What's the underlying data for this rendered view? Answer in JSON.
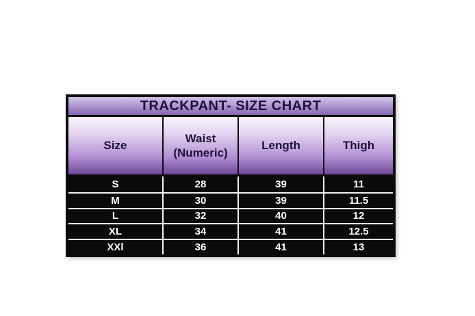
{
  "page": {
    "background": "#ffffff"
  },
  "table": {
    "title": "TRACKPANT- SIZE CHART",
    "columns": [
      "Size",
      "Waist\n(Numeric)",
      "Length",
      "Thigh"
    ],
    "rows": [
      [
        "S",
        "28",
        "39",
        "11"
      ],
      [
        "M",
        "30",
        "39",
        "11.5"
      ],
      [
        "L",
        "32",
        "40",
        "12"
      ],
      [
        "XL",
        "34",
        "41",
        "12.5"
      ],
      [
        "XXl",
        "36",
        "41",
        "13"
      ]
    ]
  },
  "chart_data": {
    "type": "table",
    "title": "TRACKPANT- SIZE CHART",
    "columns": [
      "Size",
      "Waist (Numeric)",
      "Length",
      "Thigh"
    ],
    "records": [
      {
        "size": "S",
        "waist_numeric": 28,
        "length": 39,
        "thigh": 11
      },
      {
        "size": "M",
        "waist_numeric": 30,
        "length": 39,
        "thigh": 11.5
      },
      {
        "size": "L",
        "waist_numeric": 32,
        "length": 40,
        "thigh": 12
      },
      {
        "size": "XL",
        "waist_numeric": 34,
        "length": 41,
        "thigh": 12.5
      },
      {
        "size": "XXl",
        "waist_numeric": 36,
        "length": 41,
        "thigh": 13
      }
    ]
  },
  "colors": {
    "title_gradient_top": "#d2c4e7",
    "title_gradient_bottom": "#8465ae",
    "header_gradient_top": "#f9f5fd",
    "header_gradient_bottom": "#6f4899",
    "header_text": "#1c1038",
    "data_background": "#0a0a0a",
    "data_text": "#ffffff",
    "outer_border": "#0b0b0b",
    "data_separator": "#f2f2f2"
  }
}
